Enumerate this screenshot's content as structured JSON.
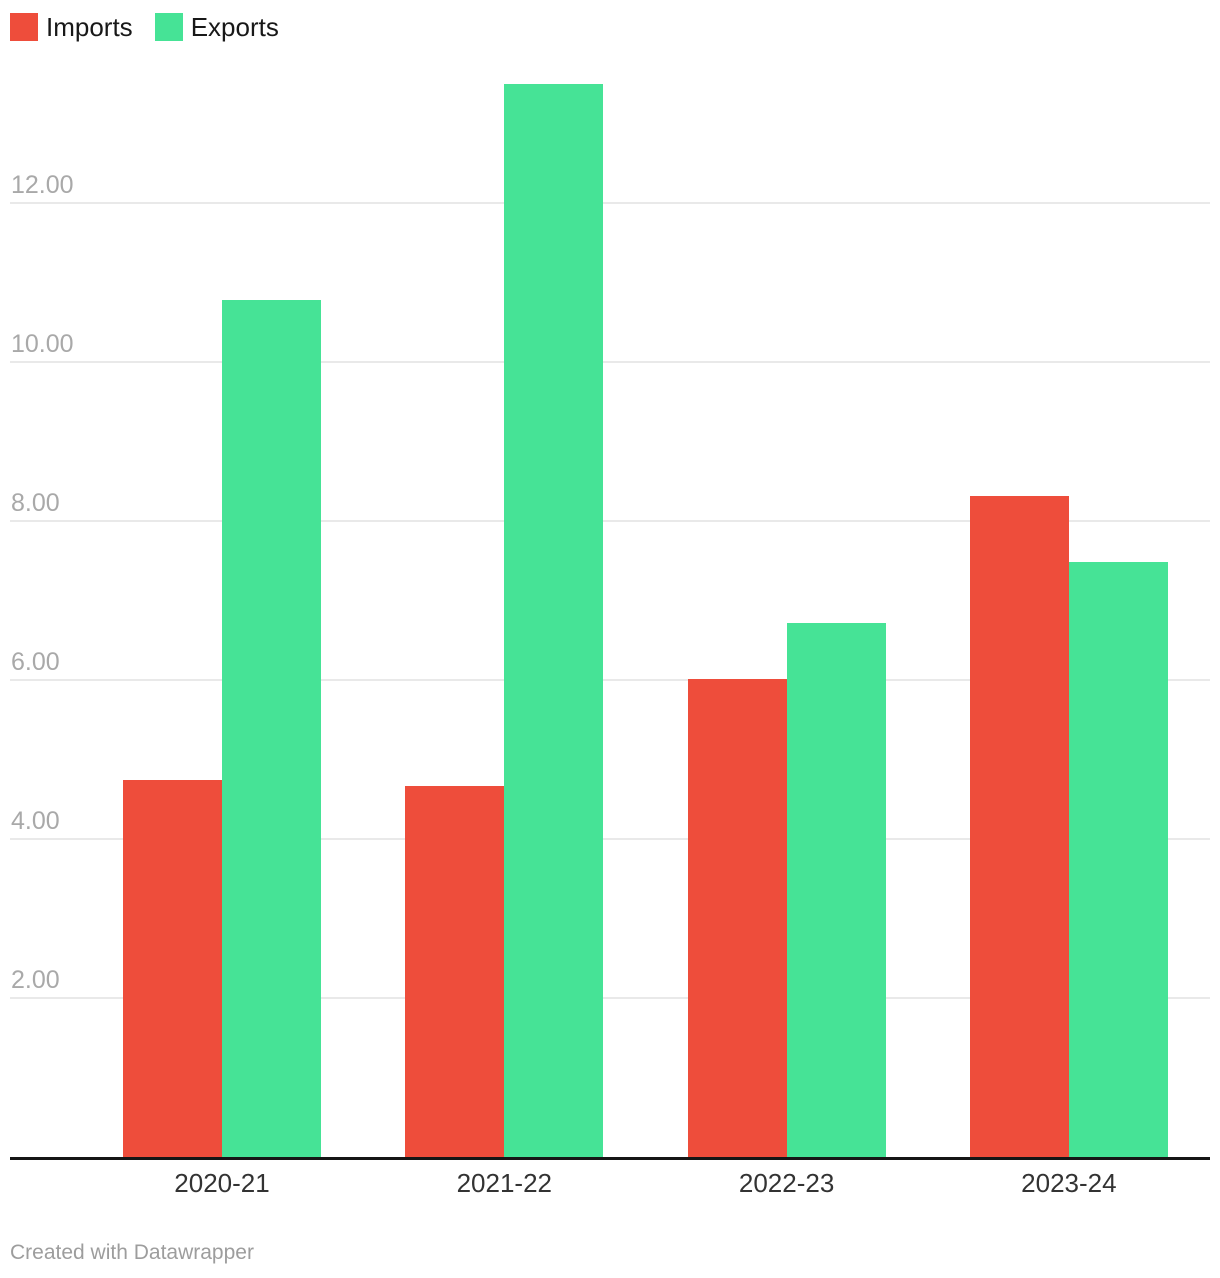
{
  "legend": {
    "items": [
      {
        "label": "Imports",
        "color": "#ee4d3b"
      },
      {
        "label": "Exports",
        "color": "#46e396"
      }
    ]
  },
  "chart_data": {
    "type": "bar",
    "categories": [
      "2020-21",
      "2021-22",
      "2022-23",
      "2023-24"
    ],
    "series": [
      {
        "name": "Imports",
        "color": "#ee4d3b",
        "values": [
          4.74,
          4.67,
          6.01,
          8.31
        ]
      },
      {
        "name": "Exports",
        "color": "#46e396",
        "values": [
          10.78,
          13.5,
          6.72,
          7.48
        ]
      }
    ],
    "title": "",
    "xlabel": "",
    "ylabel": "",
    "ylim": [
      0,
      14
    ],
    "yticks": [
      2,
      4,
      6,
      8,
      10,
      12
    ],
    "ytick_labels": [
      "2.00",
      "4.00",
      "6.00",
      "8.00",
      "10.00",
      "12.00"
    ],
    "grid": true,
    "legend_position": "top-left",
    "baseline_color": "#161616",
    "gridline_color": "#e9e9e9"
  },
  "footer": {
    "credit": "Created with Datawrapper"
  }
}
